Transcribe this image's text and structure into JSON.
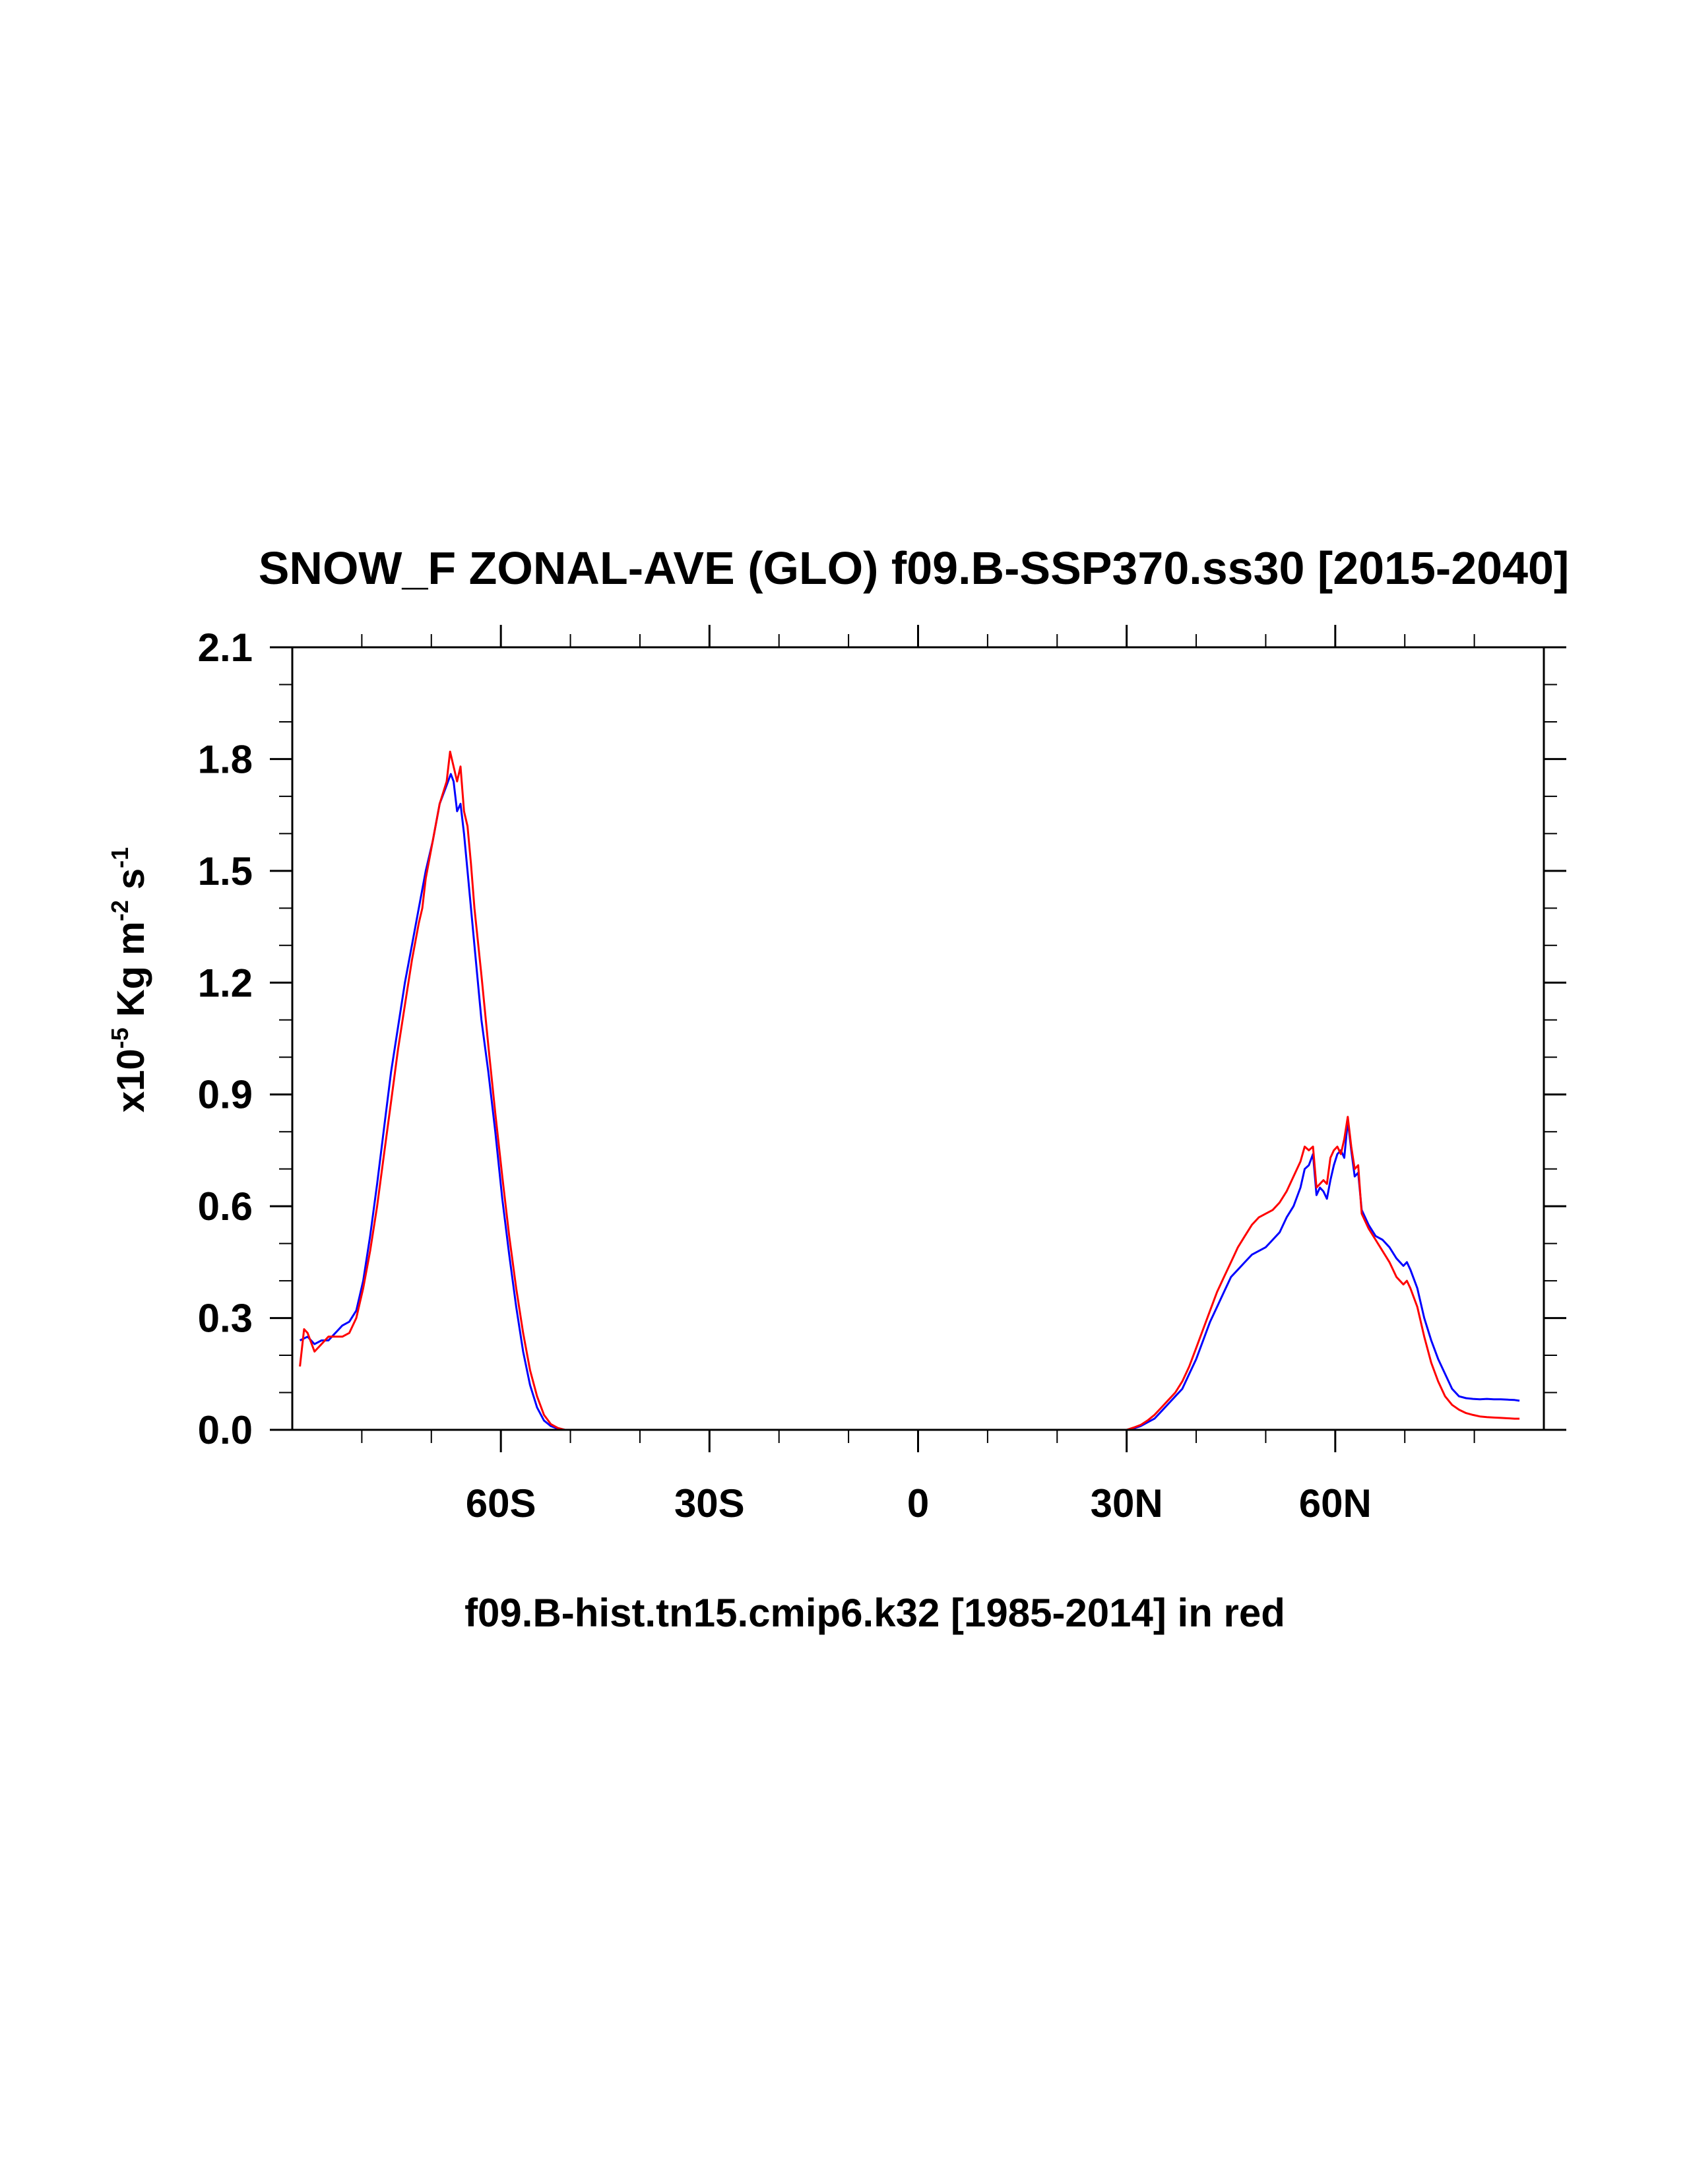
{
  "chart_data": {
    "type": "line",
    "title": "SNOW_F ZONAL-AVE (GLO) f09.B-SSP370.ss30 [2015-2040]",
    "xlabel": "f09.B-hist.tn15.cmip6.k32 [1985-2014] in red",
    "ylabel": {
      "prefix": "x10",
      "exp1": "-5",
      "unit1": " Kg m",
      "exp2": "-2",
      "unit2": " s",
      "exp3": "-1"
    },
    "xlim": [
      -90,
      90
    ],
    "ylim": [
      0,
      2.1
    ],
    "grid": false,
    "x_ticks": [
      {
        "value": -60,
        "label": "60S"
      },
      {
        "value": -30,
        "label": "30S"
      },
      {
        "value": 0,
        "label": "0"
      },
      {
        "value": 30,
        "label": "30N"
      },
      {
        "value": 60,
        "label": "60N"
      }
    ],
    "y_ticks": [
      {
        "value": 0.0,
        "label": "0.0"
      },
      {
        "value": 0.3,
        "label": "0.3"
      },
      {
        "value": 0.6,
        "label": "0.6"
      },
      {
        "value": 0.9,
        "label": "0.9"
      },
      {
        "value": 1.2,
        "label": "1.2"
      },
      {
        "value": 1.5,
        "label": "1.5"
      },
      {
        "value": 1.8,
        "label": "1.8"
      },
      {
        "value": 2.1,
        "label": "2.1"
      }
    ],
    "series": [
      {
        "color": "#0000ff",
        "points": [
          [
            -88.9,
            0.24
          ],
          [
            -87.8,
            0.25
          ],
          [
            -86.8,
            0.23
          ],
          [
            -85.8,
            0.24
          ],
          [
            -84.8,
            0.24
          ],
          [
            -83.8,
            0.26
          ],
          [
            -82.8,
            0.28
          ],
          [
            -81.8,
            0.29
          ],
          [
            -80.8,
            0.32
          ],
          [
            -79.8,
            0.4
          ],
          [
            -78.8,
            0.52
          ],
          [
            -77.8,
            0.66
          ],
          [
            -76.8,
            0.81
          ],
          [
            -75.8,
            0.96
          ],
          [
            -74.8,
            1.08
          ],
          [
            -73.8,
            1.2
          ],
          [
            -72.8,
            1.3
          ],
          [
            -71.8,
            1.4
          ],
          [
            -70.8,
            1.5
          ],
          [
            -69.8,
            1.58
          ],
          [
            -68.8,
            1.68
          ],
          [
            -67.8,
            1.73
          ],
          [
            -67.2,
            1.76
          ],
          [
            -66.8,
            1.74
          ],
          [
            -66.3,
            1.66
          ],
          [
            -65.8,
            1.68
          ],
          [
            -65.3,
            1.6
          ],
          [
            -64.8,
            1.5
          ],
          [
            -63.8,
            1.3
          ],
          [
            -62.8,
            1.1
          ],
          [
            -61.8,
            0.96
          ],
          [
            -60.8,
            0.8
          ],
          [
            -59.8,
            0.62
          ],
          [
            -58.8,
            0.47
          ],
          [
            -57.8,
            0.33
          ],
          [
            -56.8,
            0.21
          ],
          [
            -55.8,
            0.12
          ],
          [
            -54.8,
            0.06
          ],
          [
            -53.8,
            0.025
          ],
          [
            -52.8,
            0.01
          ],
          [
            -51.8,
            0.003
          ],
          [
            -50.8,
            0.0
          ],
          [
            -40,
            0.0
          ],
          [
            -20,
            0.0
          ],
          [
            0,
            0.0
          ],
          [
            20,
            0.0
          ],
          [
            28,
            0.0
          ],
          [
            30,
            0.0
          ],
          [
            31,
            0.004
          ],
          [
            32,
            0.01
          ],
          [
            33,
            0.02
          ],
          [
            34,
            0.03
          ],
          [
            35,
            0.05
          ],
          [
            36,
            0.07
          ],
          [
            37,
            0.09
          ],
          [
            38,
            0.11
          ],
          [
            39,
            0.15
          ],
          [
            40,
            0.19
          ],
          [
            41,
            0.24
          ],
          [
            42,
            0.29
          ],
          [
            43,
            0.33
          ],
          [
            44,
            0.37
          ],
          [
            45,
            0.41
          ],
          [
            46,
            0.43
          ],
          [
            47,
            0.45
          ],
          [
            48,
            0.47
          ],
          [
            49,
            0.48
          ],
          [
            50,
            0.49
          ],
          [
            51,
            0.51
          ],
          [
            52,
            0.53
          ],
          [
            53,
            0.57
          ],
          [
            54,
            0.6
          ],
          [
            55,
            0.65
          ],
          [
            55.6,
            0.7
          ],
          [
            56.2,
            0.71
          ],
          [
            56.8,
            0.74
          ],
          [
            57.3,
            0.63
          ],
          [
            57.8,
            0.65
          ],
          [
            58.3,
            0.64
          ],
          [
            58.8,
            0.62
          ],
          [
            59.3,
            0.67
          ],
          [
            59.8,
            0.71
          ],
          [
            60.3,
            0.74
          ],
          [
            60.8,
            0.75
          ],
          [
            61.3,
            0.73
          ],
          [
            61.8,
            0.83
          ],
          [
            62.3,
            0.75
          ],
          [
            62.8,
            0.68
          ],
          [
            63.3,
            0.69
          ],
          [
            63.8,
            0.59
          ],
          [
            64.8,
            0.55
          ],
          [
            65.8,
            0.52
          ],
          [
            66.8,
            0.51
          ],
          [
            67.8,
            0.49
          ],
          [
            68.8,
            0.46
          ],
          [
            69.8,
            0.44
          ],
          [
            70.3,
            0.45
          ],
          [
            70.8,
            0.43
          ],
          [
            71.8,
            0.38
          ],
          [
            72.8,
            0.3
          ],
          [
            73.8,
            0.24
          ],
          [
            74.8,
            0.19
          ],
          [
            75.8,
            0.15
          ],
          [
            76.8,
            0.11
          ],
          [
            77.8,
            0.09
          ],
          [
            78.8,
            0.085
          ],
          [
            79.8,
            0.083
          ],
          [
            80.8,
            0.082
          ],
          [
            81.8,
            0.083
          ],
          [
            82.8,
            0.082
          ],
          [
            83.8,
            0.082
          ],
          [
            84.8,
            0.081
          ],
          [
            85.8,
            0.08
          ],
          [
            86.5,
            0.078
          ]
        ]
      },
      {
        "color": "#ff0000",
        "points": [
          [
            -88.9,
            0.17
          ],
          [
            -88.3,
            0.27
          ],
          [
            -87.8,
            0.26
          ],
          [
            -86.8,
            0.21
          ],
          [
            -85.8,
            0.23
          ],
          [
            -84.8,
            0.25
          ],
          [
            -83.8,
            0.25
          ],
          [
            -82.8,
            0.25
          ],
          [
            -81.8,
            0.26
          ],
          [
            -80.8,
            0.3
          ],
          [
            -79.8,
            0.38
          ],
          [
            -78.8,
            0.48
          ],
          [
            -77.8,
            0.6
          ],
          [
            -76.8,
            0.74
          ],
          [
            -75.8,
            0.88
          ],
          [
            -74.8,
            1.02
          ],
          [
            -73.8,
            1.14
          ],
          [
            -72.8,
            1.26
          ],
          [
            -71.8,
            1.36
          ],
          [
            -71.3,
            1.4
          ],
          [
            -70.8,
            1.48
          ],
          [
            -69.8,
            1.58
          ],
          [
            -68.8,
            1.68
          ],
          [
            -67.8,
            1.74
          ],
          [
            -67.3,
            1.82
          ],
          [
            -66.8,
            1.78
          ],
          [
            -66.3,
            1.74
          ],
          [
            -65.8,
            1.78
          ],
          [
            -65.3,
            1.66
          ],
          [
            -64.8,
            1.62
          ],
          [
            -64.3,
            1.52
          ],
          [
            -63.8,
            1.4
          ],
          [
            -62.8,
            1.22
          ],
          [
            -61.8,
            1.03
          ],
          [
            -60.8,
            0.85
          ],
          [
            -59.8,
            0.68
          ],
          [
            -58.8,
            0.52
          ],
          [
            -57.8,
            0.38
          ],
          [
            -56.8,
            0.26
          ],
          [
            -55.8,
            0.16
          ],
          [
            -54.8,
            0.09
          ],
          [
            -53.8,
            0.04
          ],
          [
            -52.8,
            0.015
          ],
          [
            -51.8,
            0.005
          ],
          [
            -50.8,
            0.0
          ],
          [
            -40,
            0.0
          ],
          [
            -20,
            0.0
          ],
          [
            0,
            0.0
          ],
          [
            20,
            0.0
          ],
          [
            30,
            0.0
          ],
          [
            31,
            0.006
          ],
          [
            32,
            0.013
          ],
          [
            33,
            0.025
          ],
          [
            34,
            0.04
          ],
          [
            35,
            0.06
          ],
          [
            36,
            0.08
          ],
          [
            37,
            0.1
          ],
          [
            38,
            0.13
          ],
          [
            39,
            0.17
          ],
          [
            40,
            0.22
          ],
          [
            41,
            0.27
          ],
          [
            42,
            0.32
          ],
          [
            43,
            0.37
          ],
          [
            44,
            0.41
          ],
          [
            45,
            0.45
          ],
          [
            46,
            0.49
          ],
          [
            47,
            0.52
          ],
          [
            48,
            0.55
          ],
          [
            49,
            0.57
          ],
          [
            50,
            0.58
          ],
          [
            51,
            0.59
          ],
          [
            52,
            0.61
          ],
          [
            53,
            0.64
          ],
          [
            54,
            0.68
          ],
          [
            55,
            0.72
          ],
          [
            55.6,
            0.76
          ],
          [
            56.2,
            0.75
          ],
          [
            56.8,
            0.76
          ],
          [
            57.3,
            0.65
          ],
          [
            57.8,
            0.66
          ],
          [
            58.3,
            0.67
          ],
          [
            58.8,
            0.66
          ],
          [
            59.3,
            0.73
          ],
          [
            59.8,
            0.75
          ],
          [
            60.3,
            0.76
          ],
          [
            60.8,
            0.74
          ],
          [
            61.3,
            0.78
          ],
          [
            61.8,
            0.84
          ],
          [
            62.3,
            0.76
          ],
          [
            62.8,
            0.7
          ],
          [
            63.3,
            0.71
          ],
          [
            63.8,
            0.58
          ],
          [
            64.8,
            0.54
          ],
          [
            65.8,
            0.51
          ],
          [
            66.8,
            0.48
          ],
          [
            67.8,
            0.45
          ],
          [
            68.8,
            0.41
          ],
          [
            69.8,
            0.39
          ],
          [
            70.3,
            0.4
          ],
          [
            70.8,
            0.38
          ],
          [
            71.8,
            0.33
          ],
          [
            72.8,
            0.25
          ],
          [
            73.8,
            0.18
          ],
          [
            74.8,
            0.13
          ],
          [
            75.8,
            0.09
          ],
          [
            76.8,
            0.067
          ],
          [
            77.8,
            0.054
          ],
          [
            78.8,
            0.045
          ],
          [
            79.8,
            0.04
          ],
          [
            80.8,
            0.036
          ],
          [
            81.8,
            0.034
          ],
          [
            82.8,
            0.033
          ],
          [
            83.8,
            0.032
          ],
          [
            84.8,
            0.031
          ],
          [
            85.8,
            0.03
          ],
          [
            86.5,
            0.03
          ]
        ]
      }
    ]
  }
}
